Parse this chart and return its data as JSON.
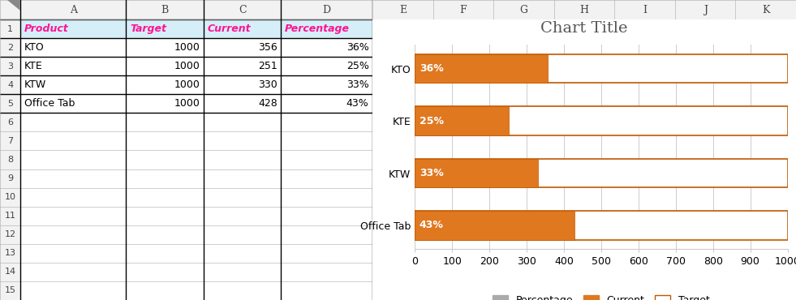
{
  "title": "Chart Title",
  "products": [
    "KTO",
    "KTE",
    "KTW",
    "Office Tab"
  ],
  "target": [
    1000,
    1000,
    1000,
    1000
  ],
  "current": [
    356,
    251,
    330,
    428
  ],
  "percentage_labels": [
    "36%",
    "25%",
    "33%",
    "43%"
  ],
  "xticks": [
    0,
    100,
    200,
    300,
    400,
    500,
    600,
    700,
    800,
    900,
    1000
  ],
  "color_current": "#E07820",
  "color_target_fill": "#FFFFFF",
  "color_target_edge": "#C05800",
  "legend_percentage_color": "#AAAAAA",
  "background_color": "#FFFFFF",
  "grid_color": "#CCCCCC",
  "excel_line_color": "#AAAAAA",
  "excel_border_color": "#000000",
  "header_bg": "#D6EEF8",
  "header_text_color": "#FF1493",
  "row_header_bg": "#F2F2F2",
  "col_header_bg": "#F2F2F2",
  "title_color": "#555555",
  "title_fontsize": 14,
  "tick_fontsize": 9,
  "label_fontsize": 9,
  "pct_label_fontsize": 9,
  "legend_fontsize": 9,
  "table_fontsize": 9,
  "bar_height": 0.55,
  "n_rows": 15,
  "col_labels": [
    "A",
    "B",
    "C",
    "D"
  ],
  "col_headers": [
    "Product",
    "Target",
    "Current",
    "Percentage"
  ]
}
